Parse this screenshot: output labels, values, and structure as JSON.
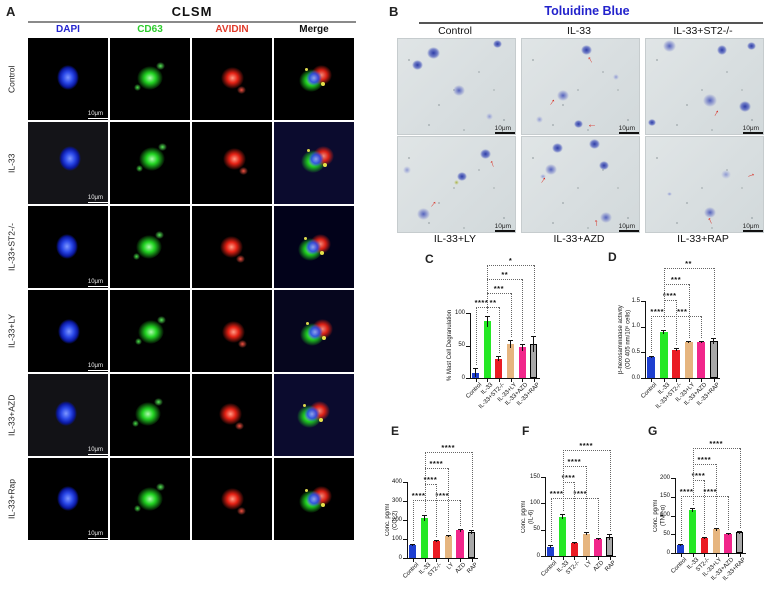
{
  "figure": {
    "panelA": {
      "letter": "A",
      "title": "CLSM",
      "channel_headers": [
        {
          "label": "DAPI",
          "color": "#2525cf"
        },
        {
          "label": "CD63",
          "color": "#2ecc2e"
        },
        {
          "label": "AVIDIN",
          "color": "#e03a2a"
        },
        {
          "label": "Merge",
          "color": "#111111"
        }
      ],
      "row_labels": [
        "Control",
        "IL-33",
        "IL-33+ST2-/-",
        "IL-33+LY",
        "IL-33+AZD",
        "IL-33+Rap"
      ],
      "scale_bar": "10μm"
    },
    "panelB": {
      "letter": "B",
      "title": "Toluidine Blue",
      "title_color": "#2323cc",
      "top_labels": [
        "Control",
        "IL-33",
        "IL-33+ST2-/-"
      ],
      "bottom_labels": [
        "IL-33+LY",
        "IL-33+AZD",
        "IL-33+RAP"
      ],
      "scale_bar": "10μm"
    }
  },
  "colors": {
    "bar_palette": [
      "#1e3fd0",
      "#25e825",
      "#ea1c24",
      "#e6b57f",
      "#f1268b",
      "#a8a8a8"
    ],
    "error_bar": "#111111",
    "significance_line": "#666666"
  },
  "chart_data": [
    {
      "panel": "C",
      "type": "bar",
      "ylabel": "% Mast Cell Degranulation",
      "categories": [
        "Control",
        "IL-33",
        "IL-33+ST2-/-",
        "IL-33+LY",
        "IL-33+AZD",
        "IL-33+RAP"
      ],
      "values": [
        8,
        87,
        30,
        52,
        47,
        52
      ],
      "errors": [
        7,
        8,
        4,
        6,
        5,
        12
      ],
      "ylim": [
        0,
        100
      ],
      "yticks": [
        "0",
        "50",
        "100"
      ],
      "significance": [
        {
          "from": 0,
          "to": 1,
          "label": "****",
          "level": 0
        },
        {
          "from": 1,
          "to": 2,
          "label": "**",
          "level": 0
        },
        {
          "from": 1,
          "to": 3,
          "label": "***",
          "level": 1
        },
        {
          "from": 1,
          "to": 4,
          "label": "**",
          "level": 2
        },
        {
          "from": 1,
          "to": 5,
          "label": "*",
          "level": 3
        }
      ]
    },
    {
      "panel": "D",
      "type": "bar",
      "ylabel": "β-hexosaminidase activity",
      "ylabel2": "(OD 405 nm/10⁶ cells)",
      "categories": [
        "Control",
        "IL-33",
        "IL-33+ST2-/-",
        "IL-33+LY",
        "IL-33+AZD",
        "IL-33+RAP"
      ],
      "values": [
        0.4,
        0.9,
        0.55,
        0.7,
        0.7,
        0.72
      ],
      "errors": [
        0.02,
        0.04,
        0.03,
        0.02,
        0.02,
        0.06
      ],
      "ylim": [
        0,
        1.5
      ],
      "yticks": [
        "0.0",
        "0.5",
        "1.0",
        "1.5"
      ],
      "significance": [
        {
          "from": 0,
          "to": 1,
          "label": "****",
          "level": 0
        },
        {
          "from": 1,
          "to": 4,
          "label": "***",
          "level": 0
        },
        {
          "from": 1,
          "to": 2,
          "label": "****",
          "level": 1
        },
        {
          "from": 1,
          "to": 3,
          "label": "***",
          "level": 2
        },
        {
          "from": 1,
          "to": 5,
          "label": "**",
          "level": 3
        }
      ]
    },
    {
      "panel": "E",
      "type": "bar",
      "ylabel": "Conc. pg/ml",
      "ylabel2": "(CCL2)",
      "categories": [
        "Control",
        "IL-33",
        "ST2-/-",
        "LY",
        "AZD",
        "RAP"
      ],
      "values": [
        70,
        210,
        90,
        115,
        145,
        135
      ],
      "errors": [
        6,
        15,
        6,
        6,
        8,
        10
      ],
      "ylim": [
        0,
        400
      ],
      "yticks": [
        "0",
        "100",
        "200",
        "300",
        "400"
      ],
      "significance": [
        {
          "from": 0,
          "to": 1,
          "label": "****",
          "level": 0
        },
        {
          "from": 1,
          "to": 4,
          "label": "****",
          "level": 0
        },
        {
          "from": 1,
          "to": 2,
          "label": "****",
          "level": 1
        },
        {
          "from": 1,
          "to": 3,
          "label": "****",
          "level": 2
        },
        {
          "from": 1,
          "to": 5,
          "label": "****",
          "level": 3
        }
      ]
    },
    {
      "panel": "F",
      "type": "bar",
      "ylabel": "Conc. pg/ml",
      "ylabel2": "(IL-6)",
      "categories": [
        "Control",
        "IL-33",
        "ST2-/-",
        "LY",
        "AZD",
        "RAP"
      ],
      "values": [
        18,
        75,
        25,
        42,
        33,
        36
      ],
      "errors": [
        2,
        4,
        2,
        3,
        2,
        5
      ],
      "ylim": [
        0,
        150
      ],
      "yticks": [
        "0",
        "50",
        "100",
        "150"
      ],
      "significance": [
        {
          "from": 0,
          "to": 1,
          "label": "****",
          "level": 0
        },
        {
          "from": 1,
          "to": 4,
          "label": "****",
          "level": 0
        },
        {
          "from": 1,
          "to": 2,
          "label": "****",
          "level": 1
        },
        {
          "from": 1,
          "to": 3,
          "label": "****",
          "level": 2
        },
        {
          "from": 1,
          "to": 5,
          "label": "****",
          "level": 3
        }
      ]
    },
    {
      "panel": "G",
      "type": "bar",
      "ylabel": "Conc. pg/ml",
      "ylabel2": "(TNF-α)",
      "categories": [
        "Control",
        "IL-33",
        "ST2-/-",
        "IL-33+LY",
        "IL-33+AZD",
        "IL-33+RAP"
      ],
      "values": [
        22,
        115,
        40,
        63,
        50,
        55
      ],
      "errors": [
        2,
        6,
        3,
        4,
        3,
        3
      ],
      "ylim": [
        0,
        200
      ],
      "yticks": [
        "0",
        "50",
        "100",
        "150",
        "200"
      ],
      "significance": [
        {
          "from": 0,
          "to": 1,
          "label": "****",
          "level": 0
        },
        {
          "from": 1,
          "to": 4,
          "label": "****",
          "level": 0
        },
        {
          "from": 1,
          "to": 2,
          "label": "****",
          "level": 1
        },
        {
          "from": 1,
          "to": 3,
          "label": "****",
          "level": 2
        },
        {
          "from": 1,
          "to": 5,
          "label": "****",
          "level": 3
        }
      ]
    }
  ]
}
